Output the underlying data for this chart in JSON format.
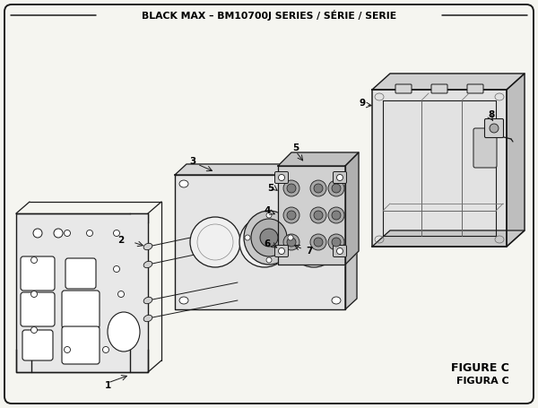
{
  "title": "BLACK MAX – BM10700J SERIES / SÉRIE / SERIE",
  "figure_label1": "FIGURE C",
  "figure_label2": "FIGURA C",
  "bg_color": "#f5f5f0",
  "border_color": "#1a1a1a",
  "lc": "#1a1a1a",
  "title_fontsize": 7.8,
  "label_fontsize": 7.5
}
